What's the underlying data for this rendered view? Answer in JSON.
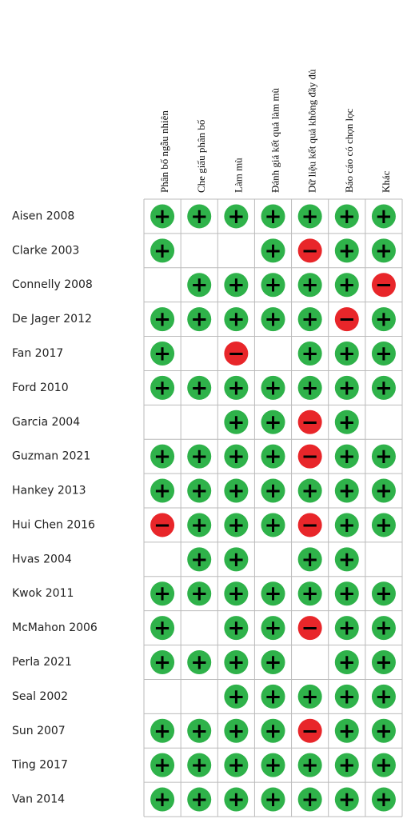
{
  "domains": [
    "Phân bố ngẫu nhiên",
    "Che giấu phân bố",
    "Làm mù",
    "Đánh giá kết quả làm mù",
    "Dữ liệu kết quả không đầy đủ",
    "Báo cáo có chọn lọc",
    "Khác"
  ],
  "studies": [
    "Aisen 2008",
    "Clarke 2003",
    "Connelly 2008",
    "De Jager 2012",
    "Fan 2017",
    "Ford 2010",
    "Garcia 2004",
    "Guzman 2021",
    "Hankey 2013",
    "Hui Chen 2016",
    "Hvas 2004",
    "Kwok 2011",
    "McMahon 2006",
    "Perla 2021",
    "Seal 2002",
    "Sun 2007",
    "Ting 2017",
    "Van 2014"
  ],
  "cells": [
    [
      "+",
      "+",
      "+",
      "+",
      "+",
      "+",
      "+"
    ],
    [
      "+",
      null,
      null,
      "+",
      "−",
      "+",
      "+"
    ],
    [
      null,
      "+",
      "+",
      "+",
      "+",
      "+",
      "−"
    ],
    [
      "+",
      "+",
      "+",
      "+",
      "+",
      "−",
      "+"
    ],
    [
      "+",
      null,
      "−",
      null,
      "+",
      "+",
      "+"
    ],
    [
      "+",
      "+",
      "+",
      "+",
      "+",
      "+",
      "+"
    ],
    [
      null,
      null,
      "+",
      "+",
      "−",
      "+",
      null
    ],
    [
      "+",
      "+",
      "+",
      "+",
      "−",
      "+",
      "+"
    ],
    [
      "+",
      "+",
      "+",
      "+",
      "+",
      "+",
      "+"
    ],
    [
      "−",
      "+",
      "+",
      "+",
      "−",
      "+",
      "+"
    ],
    [
      null,
      "+",
      "+",
      null,
      "+",
      "+",
      null
    ],
    [
      "+",
      "+",
      "+",
      "+",
      "+",
      "+",
      "+"
    ],
    [
      "+",
      null,
      "+",
      "+",
      "−",
      "+",
      "+"
    ],
    [
      "+",
      "+",
      "+",
      "+",
      null,
      "+",
      "+"
    ],
    [
      null,
      null,
      "+",
      "+",
      "+",
      "+",
      "+"
    ],
    [
      "+",
      "+",
      "+",
      "+",
      "−",
      "+",
      "+"
    ],
    [
      "+",
      "+",
      "+",
      "+",
      "+",
      "+",
      "+"
    ],
    [
      "+",
      "+",
      "+",
      "+",
      "+",
      "+",
      "+"
    ]
  ]
}
